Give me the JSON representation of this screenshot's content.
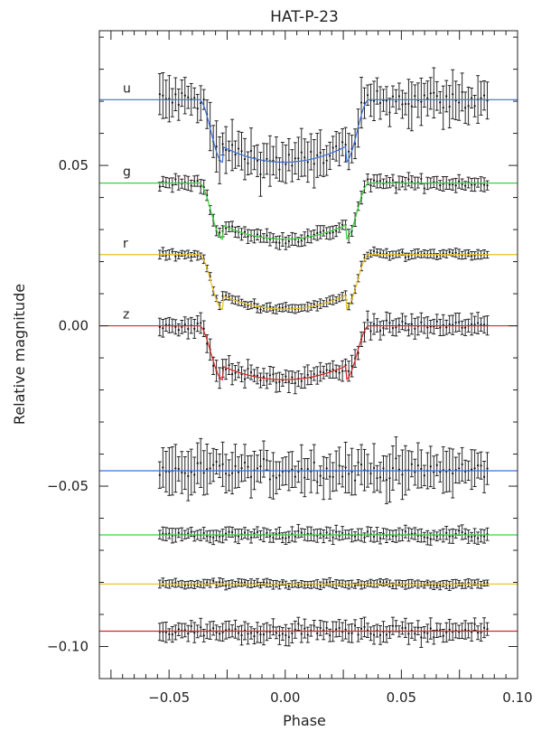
{
  "chart_data": {
    "type": "scatter",
    "title": "HAT-P-23",
    "xlabel": "Phase",
    "ylabel": "Relative magnitude",
    "xlim": [
      -0.08,
      0.1
    ],
    "ylim": [
      -0.11,
      0.092
    ],
    "x_ticks": [
      -0.05,
      0.0,
      0.05,
      0.1
    ],
    "x_tick_labels": [
      "−0.05",
      "0.00",
      "0.05",
      "0.10"
    ],
    "y_ticks": [
      0.05,
      0.0,
      -0.05,
      -0.1
    ],
    "y_tick_labels": [
      "0.05",
      "0.00",
      "−0.05",
      "−0.10"
    ],
    "grid": false,
    "series": [
      {
        "name": "u",
        "color": "#3a6fd8",
        "baseline": 0.0705,
        "depth": 0.0195,
        "noise": 0.0024,
        "err": 0.0055,
        "errvar": 0.0025,
        "points": 105,
        "x_start": -0.054,
        "x_end": 0.087
      },
      {
        "name": "g",
        "color": "#3ad23a",
        "baseline": 0.0445,
        "depth": 0.0175,
        "noise": 0.0009,
        "err": 0.0018,
        "errvar": 0.0005,
        "points": 105,
        "x_start": -0.054,
        "x_end": 0.087
      },
      {
        "name": "r",
        "color": "#e8c020",
        "baseline": 0.0222,
        "depth": 0.017,
        "noise": 0.0006,
        "err": 0.0012,
        "errvar": 0.0003,
        "points": 105,
        "x_start": -0.054,
        "x_end": 0.087
      },
      {
        "name": "z",
        "color": "#d92626",
        "baseline": 0.0,
        "depth": 0.0168,
        "noise": 0.0012,
        "err": 0.0026,
        "errvar": 0.0008,
        "points": 105,
        "x_start": -0.054,
        "x_end": 0.087
      }
    ],
    "residuals": [
      {
        "of": "u",
        "color": "#3a6fd8",
        "level": -0.0452,
        "noise": 0.0022,
        "err": 0.0055,
        "errvar": 0.0025
      },
      {
        "of": "g",
        "color": "#3ad23a",
        "level": -0.0652,
        "noise": 0.0008,
        "err": 0.0018,
        "errvar": 0.0005
      },
      {
        "of": "r",
        "color": "#e8c020",
        "level": -0.0805,
        "noise": 0.0005,
        "err": 0.0011,
        "errvar": 0.0003
      },
      {
        "of": "z",
        "color": "#d92626",
        "level": -0.0952,
        "noise": 0.0011,
        "err": 0.0025,
        "errvar": 0.0008
      }
    ],
    "transit": {
      "t1": -0.037,
      "t2": -0.027,
      "t3": 0.026,
      "t4": 0.036
    }
  }
}
